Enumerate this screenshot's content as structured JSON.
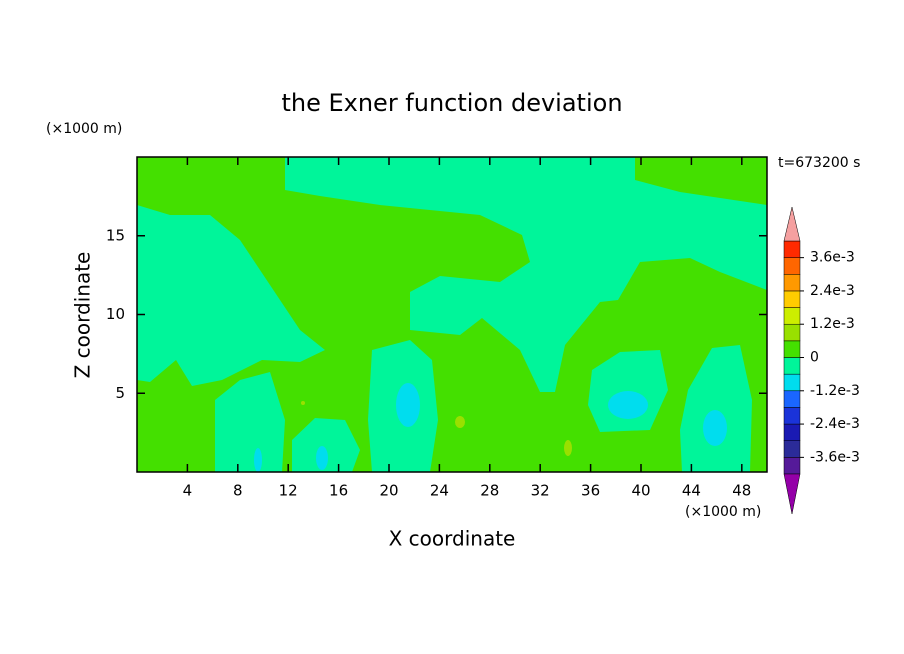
{
  "chart_data": {
    "type": "contour",
    "title": "the Exner function deviation",
    "x_label": "X coordinate",
    "y_label": "Z coordinate",
    "x_unit": "(×1000 m)",
    "y_unit": "(×1000 m)",
    "time_label": "t=673200 s",
    "xlim": [
      0,
      50
    ],
    "ylim": [
      0,
      20
    ],
    "xticks": [
      4,
      8,
      12,
      16,
      20,
      24,
      28,
      32,
      36,
      40,
      44,
      48
    ],
    "yticks": [
      5,
      10,
      15
    ],
    "colorbar": {
      "levels": [
        -0.0042,
        -0.0036,
        -0.003,
        -0.0024,
        -0.0018,
        -0.0012,
        -0.0006,
        0,
        0.0006,
        0.0012,
        0.0018,
        0.0024,
        0.003,
        0.0036,
        0.0042
      ],
      "colors": [
        "#9400a8",
        "#551a99",
        "#2b2b99",
        "#1a1ab3",
        "#1a33d9",
        "#1a66ff",
        "#00ddee",
        "#00f59a",
        "#44e000",
        "#99e000",
        "#ccee00",
        "#ffcc00",
        "#ff9900",
        "#ff6600",
        "#ff2a00",
        "#f5a0a0"
      ],
      "ticks": [
        {
          "value": 0.0036,
          "label": "3.6e-3"
        },
        {
          "value": 0.0024,
          "label": "2.4e-3"
        },
        {
          "value": 0.0012,
          "label": "1.2e-3"
        },
        0,
        {
          "value": -0.0012,
          "label": "-1.2e-3"
        },
        {
          "value": -0.0024,
          "label": "-2.4e-3"
        },
        {
          "value": -0.0036,
          "label": "-3.6e-3"
        }
      ]
    }
  }
}
